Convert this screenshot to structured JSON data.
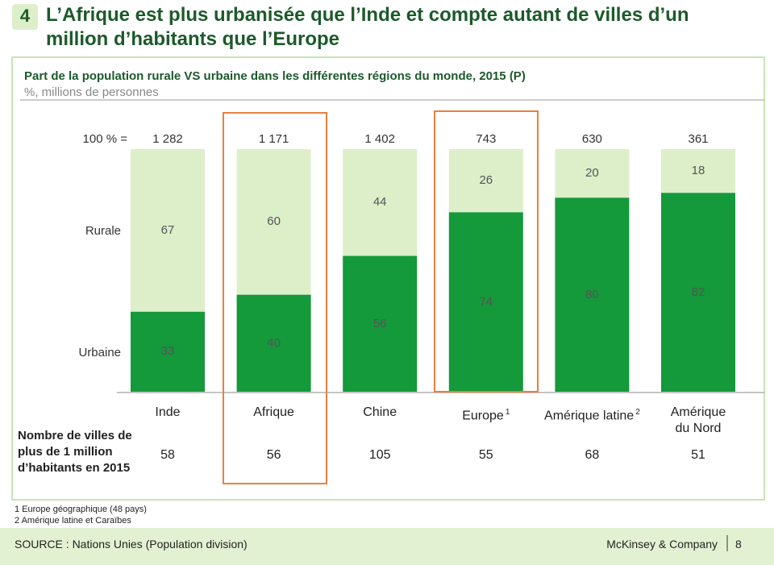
{
  "header": {
    "number": "4",
    "title": "L’Afrique est plus urbanisée que l’Inde et compte autant de villes d’un\nmillion d’habitants que l’Europe"
  },
  "chart_data": {
    "type": "stacked_bar",
    "title": "Part de la population rurale VS urbaine dans les différentes régions du monde, 2015 (P)",
    "subtitle": "%, millions de personnes",
    "total_label": "100 % =",
    "categories": [
      "Inde",
      "Afrique",
      "Chine",
      "Europe",
      "Amérique latine",
      "Amérique\ndu Nord"
    ],
    "category_notes": [
      null,
      null,
      null,
      "1",
      "2",
      null
    ],
    "totals": {
      "values": [
        1282,
        1171,
        1402,
        743,
        630,
        361
      ],
      "value_labels": [
        "1 282",
        "1 171",
        "1 402",
        "743",
        "630",
        "361"
      ]
    },
    "series": [
      {
        "name": "Urbaine",
        "color": "#14993b",
        "values": [
          33,
          40,
          56,
          74,
          80,
          82
        ]
      },
      {
        "name": "Rurale",
        "color": "#dcefc9",
        "values": [
          67,
          60,
          44,
          26,
          20,
          18
        ]
      }
    ],
    "ylim": [
      0,
      100
    ]
  },
  "cities": {
    "label": "Nombre de villes de\nplus de 1 million\nd’habitants en 2015",
    "values": [
      58,
      56,
      105,
      55,
      68,
      51
    ]
  },
  "footnotes": [
    "1 Europe géographique (48 pays)",
    "2 Amérique latine et Caraïbes"
  ],
  "footer": {
    "source": "SOURCE : Nations Unies (Population division)",
    "brand": "McKinsey & Company",
    "page": "8"
  }
}
